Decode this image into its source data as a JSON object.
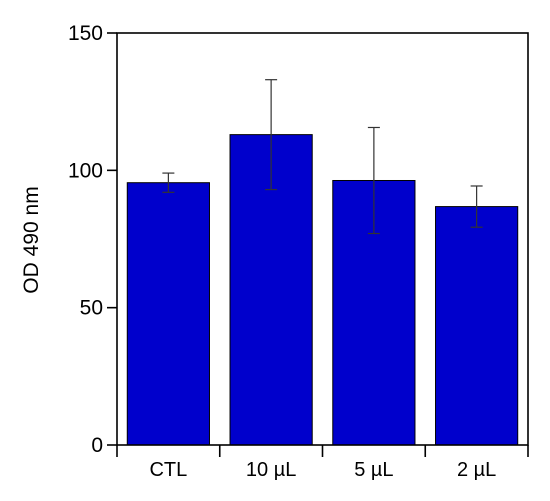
{
  "chart_data": {
    "type": "bar",
    "categories": [
      "CTL",
      "10 µL",
      "5 µL",
      "2 µL"
    ],
    "values": [
      95.5,
      113,
      96.3,
      86.8
    ],
    "errors": [
      3.5,
      20,
      19.3,
      7.5
    ],
    "title": "",
    "xlabel": "",
    "ylabel": "OD 490 nm",
    "ylim": [
      0,
      150
    ],
    "yticks": [
      0,
      50,
      100,
      150
    ],
    "grid": false,
    "bar_color": "#0000cc",
    "bar_edge_color": "#000000",
    "error_bar_color": "#333333"
  }
}
